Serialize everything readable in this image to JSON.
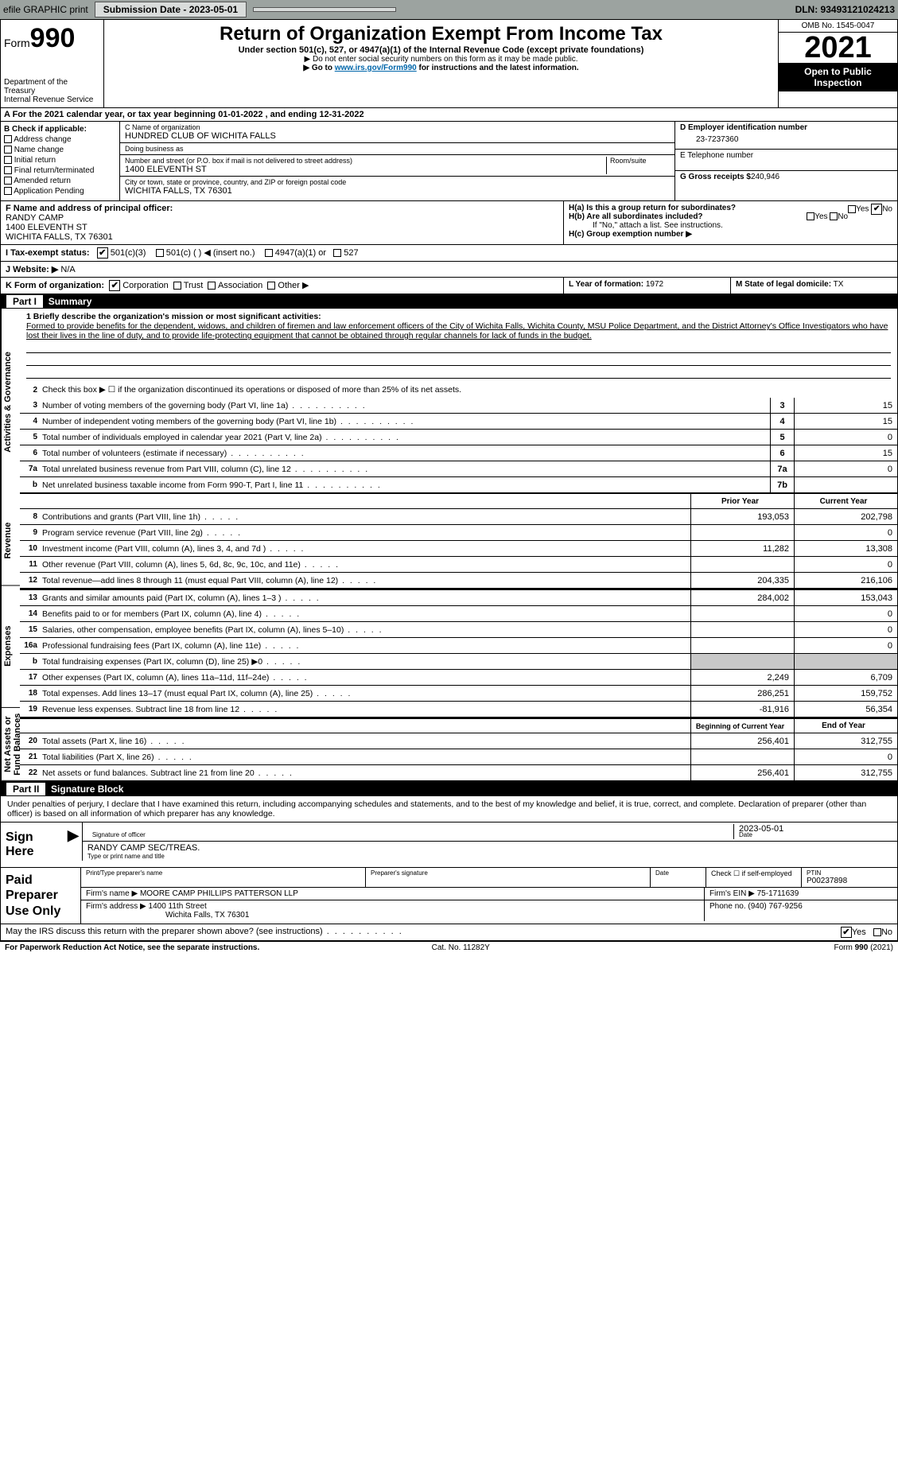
{
  "topbar": {
    "efile": "efile GRAPHIC print",
    "submission_label": "Submission Date - 2023-05-01",
    "dln": "DLN: 93493121024213"
  },
  "header": {
    "form_word": "Form",
    "form_num": "990",
    "title": "Return of Organization Exempt From Income Tax",
    "subtitle": "Under section 501(c), 527, or 4947(a)(1) of the Internal Revenue Code (except private foundations)",
    "note1": "▶ Do not enter social security numbers on this form as it may be made public.",
    "note2_pre": "▶ Go to ",
    "note2_link": "www.irs.gov/Form990",
    "note2_post": " for instructions and the latest information.",
    "dept": "Department of the Treasury",
    "irs": "Internal Revenue Service",
    "omb": "OMB No. 1545-0047",
    "year": "2021",
    "inspect": "Open to Public Inspection"
  },
  "row_a": "A For the 2021 calendar year, or tax year beginning 01-01-2022   , and ending 12-31-2022",
  "col_b": {
    "hdr": "B Check if applicable:",
    "opts": [
      "Address change",
      "Name change",
      "Initial return",
      "Final return/terminated",
      "Amended return",
      "Application Pending"
    ]
  },
  "col_c": {
    "name_lbl": "C Name of organization",
    "name": "HUNDRED CLUB OF WICHITA FALLS",
    "dba_lbl": "Doing business as",
    "dba": "",
    "addr_lbl": "Number and street (or P.O. box if mail is not delivered to street address)",
    "room_lbl": "Room/suite",
    "addr": "1400 ELEVENTH ST",
    "city_lbl": "City or town, state or province, country, and ZIP or foreign postal code",
    "city": "WICHITA FALLS, TX  76301"
  },
  "col_d": {
    "ein_lbl": "D Employer identification number",
    "ein": "23-7237360",
    "tel_lbl": "E Telephone number",
    "tel": "",
    "gross_lbl": "G Gross receipts $",
    "gross": "240,946"
  },
  "row_f": {
    "lbl": "F  Name and address of principal officer:",
    "name": "RANDY CAMP",
    "addr1": "1400 ELEVENTH ST",
    "addr2": "WICHITA FALLS, TX  76301"
  },
  "row_h": {
    "a_lbl": "H(a)  Is this a group return for subordinates?",
    "b_lbl": "H(b)  Are all subordinates included?",
    "b_note": "If \"No,\" attach a list. See instructions.",
    "c_lbl": "H(c)  Group exemption number ▶",
    "yes": "Yes",
    "no": "No"
  },
  "row_i": {
    "lbl": "I  Tax-exempt status:",
    "o1": "501(c)(3)",
    "o2": "501(c) (    ) ◀ (insert no.)",
    "o3": "4947(a)(1) or",
    "o4": "527"
  },
  "row_j": {
    "lbl": "J  Website: ▶",
    "val": " N/A"
  },
  "row_k": {
    "lbl": "K Form of organization:",
    "o1": "Corporation",
    "o2": "Trust",
    "o3": "Association",
    "o4": "Other ▶"
  },
  "row_lm": {
    "l_lbl": "L Year of formation:",
    "l_val": "1972",
    "m_lbl": "M State of legal domicile:",
    "m_val": "TX"
  },
  "part1": {
    "hdr_num": "Part I",
    "hdr_txt": "Summary",
    "vtabs": [
      "Activities & Governance",
      "Revenue",
      "Expenses",
      "Net Assets or Fund Balances"
    ],
    "line1_lbl": "1  Briefly describe the organization's mission or most significant activities:",
    "mission": "Formed to provide benefits for the dependent, widows, and children of firemen and law enforcement officers of the City of Wichita Falls, Wichita County, MSU Police Department, and the District Attorney's Office Investigators who have lost their lives in the line of duty, and to provide life-protecting equipment that cannot be obtained through regular channels for lack of funds in the budget.",
    "line2": "Check this box ▶ ☐  if the organization discontinued its operations or disposed of more than 25% of its net assets.",
    "lines_gov": [
      {
        "n": "3",
        "t": "Number of voting members of the governing body (Part VI, line 1a)",
        "box": "3",
        "v": "15"
      },
      {
        "n": "4",
        "t": "Number of independent voting members of the governing body (Part VI, line 1b)",
        "box": "4",
        "v": "15"
      },
      {
        "n": "5",
        "t": "Total number of individuals employed in calendar year 2021 (Part V, line 2a)",
        "box": "5",
        "v": "0"
      },
      {
        "n": "6",
        "t": "Total number of volunteers (estimate if necessary)",
        "box": "6",
        "v": "15"
      },
      {
        "n": "7a",
        "t": "Total unrelated business revenue from Part VIII, column (C), line 12",
        "box": "7a",
        "v": "0"
      },
      {
        "n": "b",
        "t": "Net unrelated business taxable income from Form 990-T, Part I, line 11",
        "box": "7b",
        "v": ""
      }
    ],
    "col_prior": "Prior Year",
    "col_curr": "Current Year",
    "lines_rev": [
      {
        "n": "8",
        "t": "Contributions and grants (Part VIII, line 1h)",
        "p": "193,053",
        "c": "202,798"
      },
      {
        "n": "9",
        "t": "Program service revenue (Part VIII, line 2g)",
        "p": "",
        "c": "0"
      },
      {
        "n": "10",
        "t": "Investment income (Part VIII, column (A), lines 3, 4, and 7d )",
        "p": "11,282",
        "c": "13,308"
      },
      {
        "n": "11",
        "t": "Other revenue (Part VIII, column (A), lines 5, 6d, 8c, 9c, 10c, and 11e)",
        "p": "",
        "c": "0"
      },
      {
        "n": "12",
        "t": "Total revenue—add lines 8 through 11 (must equal Part VIII, column (A), line 12)",
        "p": "204,335",
        "c": "216,106"
      }
    ],
    "lines_exp": [
      {
        "n": "13",
        "t": "Grants and similar amounts paid (Part IX, column (A), lines 1–3 )",
        "p": "284,002",
        "c": "153,043"
      },
      {
        "n": "14",
        "t": "Benefits paid to or for members (Part IX, column (A), line 4)",
        "p": "",
        "c": "0"
      },
      {
        "n": "15",
        "t": "Salaries, other compensation, employee benefits (Part IX, column (A), lines 5–10)",
        "p": "",
        "c": "0"
      },
      {
        "n": "16a",
        "t": "Professional fundraising fees (Part IX, column (A), line 11e)",
        "p": "",
        "c": "0"
      },
      {
        "n": "b",
        "t": "Total fundraising expenses (Part IX, column (D), line 25) ▶0",
        "p": "shade",
        "c": "shade"
      },
      {
        "n": "17",
        "t": "Other expenses (Part IX, column (A), lines 11a–11d, 11f–24e)",
        "p": "2,249",
        "c": "6,709"
      },
      {
        "n": "18",
        "t": "Total expenses. Add lines 13–17 (must equal Part IX, column (A), line 25)",
        "p": "286,251",
        "c": "159,752"
      },
      {
        "n": "19",
        "t": "Revenue less expenses. Subtract line 18 from line 12",
        "p": "-81,916",
        "c": "56,354"
      }
    ],
    "col_begin": "Beginning of Current Year",
    "col_end": "End of Year",
    "lines_net": [
      {
        "n": "20",
        "t": "Total assets (Part X, line 16)",
        "p": "256,401",
        "c": "312,755"
      },
      {
        "n": "21",
        "t": "Total liabilities (Part X, line 26)",
        "p": "",
        "c": "0"
      },
      {
        "n": "22",
        "t": "Net assets or fund balances. Subtract line 21 from line 20",
        "p": "256,401",
        "c": "312,755"
      }
    ]
  },
  "part2": {
    "hdr_num": "Part II",
    "hdr_txt": "Signature Block",
    "decl": "Under penalties of perjury, I declare that I have examined this return, including accompanying schedules and statements, and to the best of my knowledge and belief, it is true, correct, and complete. Declaration of preparer (other than officer) is based on all information of which preparer has any knowledge.",
    "sign_here": "Sign Here",
    "sig_officer": "Signature of officer",
    "sig_date": "Date",
    "sig_date_val": "2023-05-01",
    "sig_name": "RANDY CAMP SEC/TREAS.",
    "sig_name_lbl": "Type or print name and title",
    "paid": "Paid Preparer Use Only",
    "prep_name_lbl": "Print/Type preparer's name",
    "prep_sig_lbl": "Preparer's signature",
    "prep_date_lbl": "Date",
    "prep_check": "Check ☐ if self-employed",
    "ptin_lbl": "PTIN",
    "ptin": "P00237898",
    "firm_name_lbl": "Firm's name    ▶",
    "firm_name": "MOORE CAMP PHILLIPS PATTERSON LLP",
    "firm_ein_lbl": "Firm's EIN ▶",
    "firm_ein": "75-1711639",
    "firm_addr_lbl": "Firm's address ▶",
    "firm_addr1": "1400 11th Street",
    "firm_addr2": "Wichita Falls, TX  76301",
    "phone_lbl": "Phone no.",
    "phone": "(940) 767-9256",
    "discuss": "May the IRS discuss this return with the preparer shown above? (see instructions)",
    "yes": "Yes",
    "no": "No"
  },
  "footer": {
    "left": "For Paperwork Reduction Act Notice, see the separate instructions.",
    "mid": "Cat. No. 11282Y",
    "right": "Form 990 (2021)"
  },
  "colors": {
    "topbar_bg": "#9ca3a0",
    "btn_bg": "#d9dcdb",
    "part_bg": "#000000",
    "shade_bg": "#c8c8c8",
    "link": "#0066aa"
  }
}
